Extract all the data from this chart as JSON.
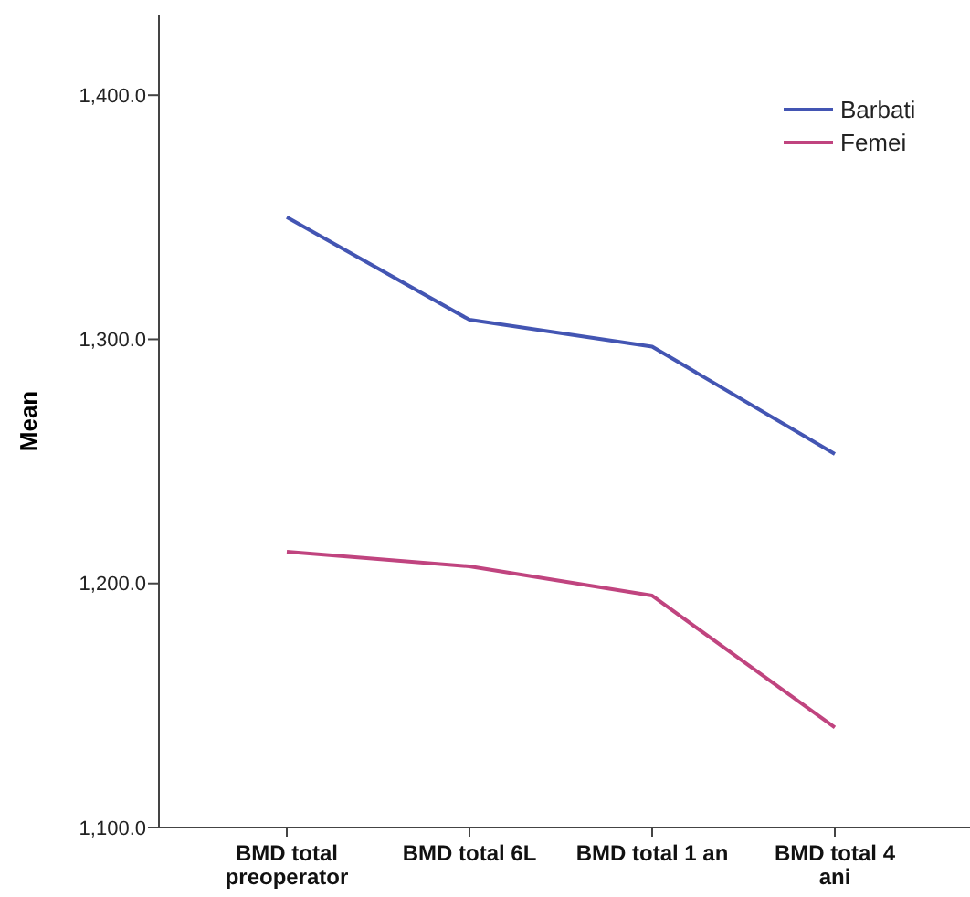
{
  "chart_data": {
    "type": "line",
    "ylabel": "Mean",
    "categories": [
      "BMD total preoperator",
      "BMD total 6L",
      "BMD total 1 an",
      "BMD total 4 ani"
    ],
    "series": [
      {
        "name": "Barbati",
        "color": "#4355b3",
        "values": [
          1350,
          1308,
          1297,
          1253
        ]
      },
      {
        "name": "Femei",
        "color": "#c0447f",
        "values": [
          1213,
          1207,
          1195,
          1141
        ]
      }
    ],
    "ylim": [
      1100,
      1433
    ],
    "yticks": [
      {
        "value": 1100,
        "label": "1,100.0"
      },
      {
        "value": 1200,
        "label": "1,200.0"
      },
      {
        "value": 1300,
        "label": "1,300.0"
      },
      {
        "value": 1400,
        "label": "1,400.0"
      }
    ],
    "grid": false,
    "legend": "top right",
    "marker": "none",
    "line_style": "solid"
  }
}
